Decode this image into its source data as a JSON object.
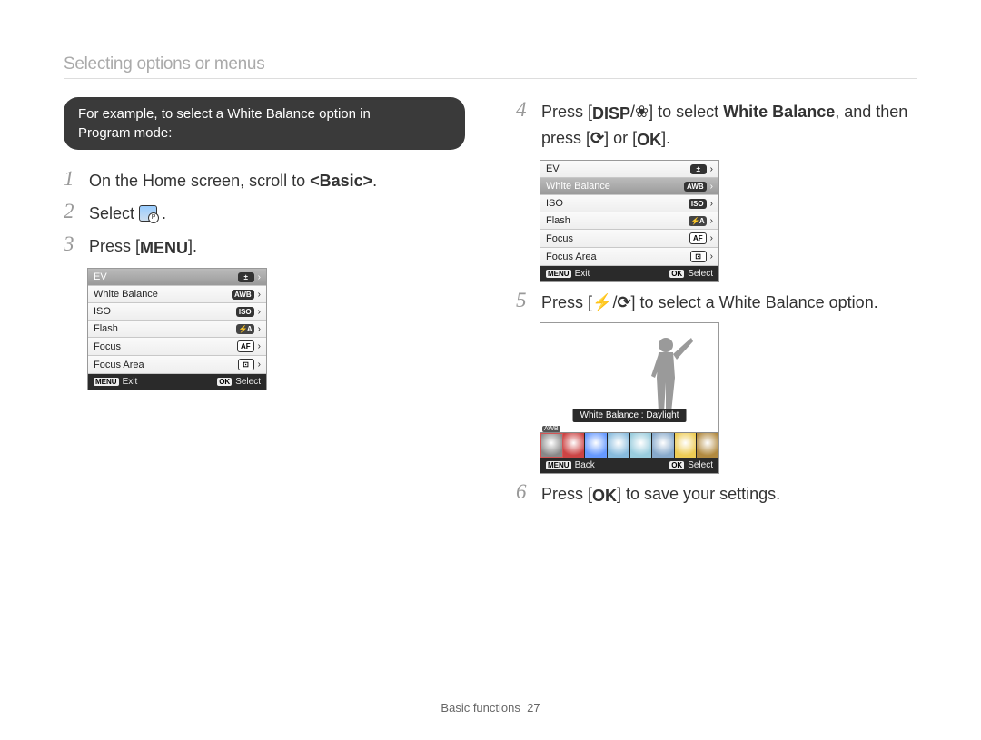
{
  "header": {
    "title": "Selecting options or menus"
  },
  "pill": {
    "line1": "For example, to select a White Balance option in",
    "line2": "Program mode:"
  },
  "left_steps": {
    "s1": {
      "num": "1",
      "pre": "On the Home screen, scroll to ",
      "bold": "<Basic>",
      "post": "."
    },
    "s2": {
      "num": "2",
      "pre": "Select "
    },
    "s3": {
      "num": "3",
      "pre": "Press [",
      "menu": "MENU",
      "post": "]."
    }
  },
  "right_steps": {
    "s4": {
      "num": "4",
      "pre": "Press [",
      "disp": "DISP",
      "slash": "/",
      "postpre": "] to select ",
      "bold": "White Balance",
      "mid": ", and then press [",
      "mid2": "] or [",
      "ok": "OK",
      "end": "]."
    },
    "s5": {
      "num": "5",
      "pre": "Press [",
      "slash": "/",
      "post": "] to select a White Balance option."
    },
    "s6": {
      "num": "6",
      "pre": "Press [",
      "ok": "OK",
      "post": "] to save your settings."
    }
  },
  "menu": {
    "items": [
      {
        "label": "EV",
        "badge": "±",
        "cls": "ev"
      },
      {
        "label": "White Balance",
        "badge": "AWB",
        "cls": "wb"
      },
      {
        "label": "ISO",
        "badge": "ISO",
        "cls": "iso"
      },
      {
        "label": "Flash",
        "badge": "⚡A",
        "cls": "flash"
      },
      {
        "label": "Focus",
        "badge": "AF",
        "cls": "focus"
      },
      {
        "label": "Focus Area",
        "badge": "⊡",
        "cls": "area"
      }
    ],
    "footer_left_tag": "MENU",
    "footer_left": "Exit",
    "footer_right_tag": "OK",
    "footer_right": "Select"
  },
  "wb_picker": {
    "label": "White Balance : Daylight",
    "thumbs_colors": [
      "#888888",
      "#cc4444",
      "#6699ff",
      "#88bbdd",
      "#99ccdd",
      "#88aacc",
      "#eecc55",
      "#b28a40"
    ],
    "selected_index": 0,
    "atag": "AWB",
    "footer_left_tag": "MENU",
    "footer_left": "Back",
    "footer_right_tag": "OK",
    "footer_right": "Select"
  },
  "footer": {
    "section": "Basic functions",
    "page": "27"
  }
}
